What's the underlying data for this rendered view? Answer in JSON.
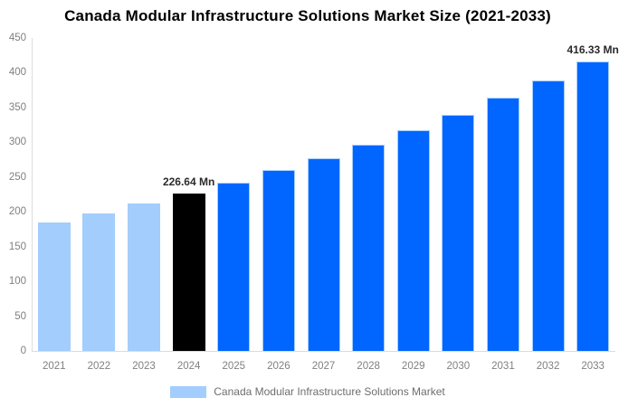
{
  "title": "Canada Modular Infrastructure Solutions Market Size (2021-2033)",
  "colors": {
    "forecast_blue": "#0066ff",
    "historical_light_blue": "#a3cdfc",
    "highlight_black": "#000000",
    "axis_line": "#dcdcdc",
    "tick_text": "#808080",
    "annotation_text": "#2b2b2b",
    "legend_text": "#6e6e6e",
    "background": "#ffffff"
  },
  "chart_data": {
    "type": "bar",
    "title": "Canada Modular Infrastructure Solutions Market Size (2021-2033)",
    "xlabel": "",
    "ylabel": "",
    "unit": "Mn",
    "categories": [
      "2021",
      "2022",
      "2023",
      "2024",
      "2025",
      "2026",
      "2027",
      "2028",
      "2029",
      "2030",
      "2031",
      "2032",
      "2033"
    ],
    "values": [
      185.0,
      198.0,
      211.8,
      226.64,
      242.5,
      259.5,
      277.6,
      297.1,
      317.9,
      340.1,
      363.9,
      389.4,
      416.33
    ],
    "bar_colors": [
      "#a3cdfc",
      "#a3cdfc",
      "#a3cdfc",
      "#000000",
      "#0066ff",
      "#0066ff",
      "#0066ff",
      "#0066ff",
      "#0066ff",
      "#0066ff",
      "#0066ff",
      "#0066ff",
      "#0066ff"
    ],
    "bar_borders": [
      null,
      null,
      null,
      null,
      "#a3cdfc",
      "#a3cdfc",
      "#a3cdfc",
      "#a3cdfc",
      "#a3cdfc",
      "#a3cdfc",
      "#a3cdfc",
      "#a3cdfc",
      "#a3cdfc"
    ],
    "annotations": [
      {
        "index": 3,
        "text": "226.64 Mn"
      },
      {
        "index": 12,
        "text": "416.33 Mn"
      }
    ],
    "ylim": [
      0,
      450
    ],
    "yticks": [
      0,
      50,
      100,
      150,
      200,
      250,
      300,
      350,
      400,
      450
    ],
    "grid": false,
    "legend": {
      "label": "Canada Modular Infrastructure Solutions Market",
      "swatch_color": "#a3cdfc",
      "position": "bottom"
    }
  }
}
